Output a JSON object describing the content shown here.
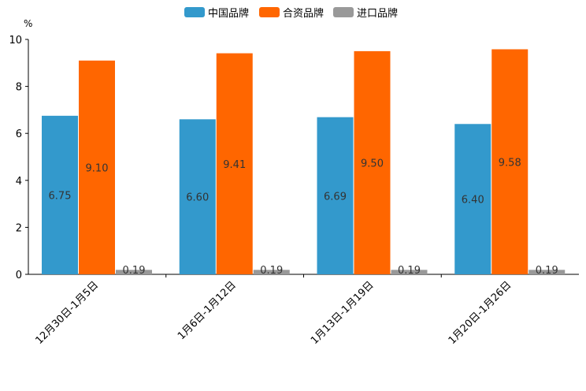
{
  "chart_data": {
    "type": "bar",
    "title": "",
    "ylabel": "%",
    "xlabel": "",
    "ylim": [
      0,
      10
    ],
    "yticks": [
      0,
      2,
      4,
      6,
      8,
      10
    ],
    "categories": [
      "12月30日-1月5日",
      "1月6日-1月12日",
      "1月13日-1月19日",
      "1月20日-1月26日"
    ],
    "series": [
      {
        "name": "中国品牌",
        "color": "#3399cc",
        "values": [
          6.75,
          6.6,
          6.69,
          6.4
        ],
        "labels": [
          "6.75",
          "6.60",
          "6.69",
          "6.40"
        ]
      },
      {
        "name": "合资品牌",
        "color": "#ff6600",
        "values": [
          9.1,
          9.41,
          9.5,
          9.58
        ],
        "labels": [
          "9.10",
          "9.41",
          "9.50",
          "9.58"
        ]
      },
      {
        "name": "进口品牌",
        "color": "#999999",
        "values": [
          0.19,
          0.19,
          0.19,
          0.19
        ],
        "labels": [
          "0.19",
          "0.19",
          "0.19",
          "0.19"
        ]
      }
    ],
    "legend_position": "top-center",
    "grid": false
  }
}
